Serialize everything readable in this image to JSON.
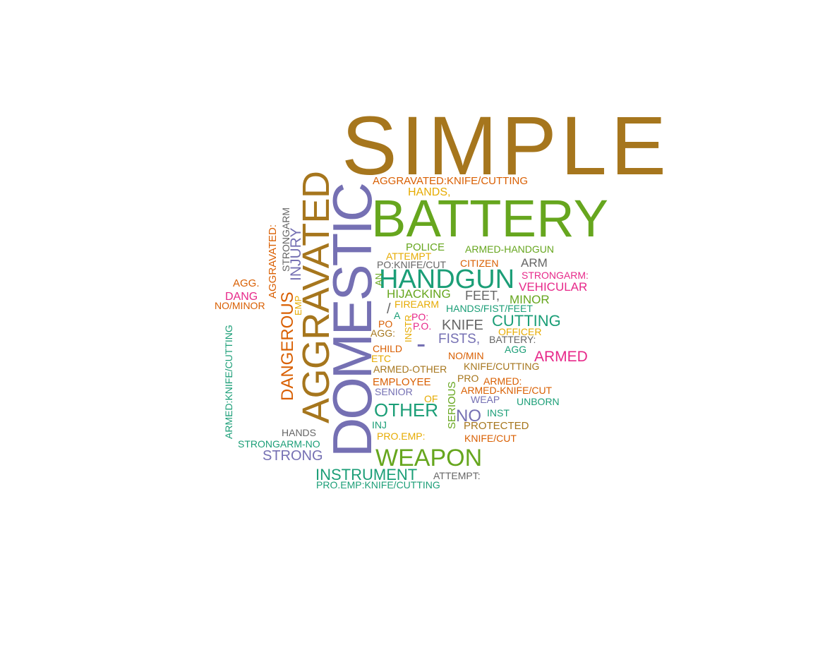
{
  "palette": {
    "brown": "#a6761d",
    "green": "#66a61e",
    "purple": "#7570b3",
    "teal": "#1b9e77",
    "orange": "#d95f02",
    "pink": "#e7298a",
    "gold": "#e6ab02",
    "gray": "#666666"
  },
  "words": [
    {
      "text": "SIMPLE",
      "color": "brown",
      "weight": 1.0
    },
    {
      "text": "BATTERY",
      "color": "green",
      "weight": 0.72
    },
    {
      "text": "DOMESTIC",
      "color": "purple",
      "weight": 0.8
    },
    {
      "text": "AGGRAVATED",
      "color": "brown",
      "weight": 0.62
    },
    {
      "text": "HANDGUN",
      "color": "teal",
      "weight": 0.4
    },
    {
      "text": "WEAPON",
      "color": "green",
      "weight": 0.35
    },
    {
      "text": "DANGEROUS",
      "color": "orange",
      "weight": 0.26
    },
    {
      "text": "OTHER",
      "color": "teal",
      "weight": 0.28
    },
    {
      "text": "INSTRUMENT",
      "color": "teal",
      "weight": 0.24
    },
    {
      "text": "CUTTING",
      "color": "teal",
      "weight": 0.22
    },
    {
      "text": "INJURY",
      "color": "purple",
      "weight": 0.2
    },
    {
      "text": "STRONG",
      "color": "purple",
      "weight": 0.2
    },
    {
      "text": "NO",
      "color": "purple",
      "weight": 0.22
    },
    {
      "text": "ARMED",
      "color": "pink",
      "weight": 0.21
    },
    {
      "text": "KNIFE",
      "color": "gray",
      "weight": 0.2
    },
    {
      "text": "FISTS,",
      "color": "purple",
      "weight": 0.19
    },
    {
      "text": "VEHICULAR",
      "color": "pink",
      "weight": 0.17
    },
    {
      "text": "ARM",
      "color": "gray",
      "weight": 0.17
    },
    {
      "text": "FEET,",
      "color": "gray",
      "weight": 0.17
    },
    {
      "text": "HIJACKING",
      "color": "green",
      "weight": 0.16
    },
    {
      "text": "MINOR",
      "color": "green",
      "weight": 0.16
    },
    {
      "text": "-",
      "color": "purple",
      "weight": 0.3
    },
    {
      "text": "/",
      "color": "gray",
      "weight": 0.2
    },
    {
      "text": "AGGRAVATED:",
      "color": "orange",
      "weight": 0.15
    },
    {
      "text": "STRONGARM",
      "color": "gray",
      "weight": 0.15
    },
    {
      "text": "HANDS,",
      "color": "gold",
      "weight": 0.15
    },
    {
      "text": "SERIOUS",
      "color": "green",
      "weight": 0.14
    },
    {
      "text": "AGGRAVATED:KNIFE/CUTTING",
      "color": "orange",
      "weight": 0.14
    },
    {
      "text": "ARMED-HANDGUN",
      "color": "green",
      "weight": 0.14
    },
    {
      "text": "POLICE",
      "color": "green",
      "weight": 0.14
    },
    {
      "text": "ATTEMPT",
      "color": "gold",
      "weight": 0.14
    },
    {
      "text": "CITIZEN",
      "color": "orange",
      "weight": 0.14
    },
    {
      "text": "PO:KNIFE/CUT",
      "color": "gray",
      "weight": 0.14
    },
    {
      "text": "STRONGARM:",
      "color": "pink",
      "weight": 0.14
    },
    {
      "text": "AN",
      "color": "green",
      "weight": 0.13
    },
    {
      "text": "AGG.",
      "color": "orange",
      "weight": 0.14
    },
    {
      "text": "DANG",
      "color": "pink",
      "weight": 0.15
    },
    {
      "text": "NO/MINOR",
      "color": "orange",
      "weight": 0.14
    },
    {
      "text": "EMP",
      "color": "gold",
      "weight": 0.13
    },
    {
      "text": "FIREARM",
      "color": "gold",
      "weight": 0.14
    },
    {
      "text": "HANDS/FIST/FEET",
      "color": "teal",
      "weight": 0.14
    },
    {
      "text": "A",
      "color": "teal",
      "weight": 0.13
    },
    {
      "text": "PO:",
      "color": "pink",
      "weight": 0.13
    },
    {
      "text": "PO",
      "color": "orange",
      "weight": 0.13
    },
    {
      "text": "P.O.",
      "color": "pink",
      "weight": 0.13
    },
    {
      "text": "INSTR",
      "color": "gold",
      "weight": 0.13
    },
    {
      "text": "OFFICER",
      "color": "gold",
      "weight": 0.14
    },
    {
      "text": "AGG:",
      "color": "brown",
      "weight": 0.13
    },
    {
      "text": "BATTERY:",
      "color": "gray",
      "weight": 0.14
    },
    {
      "text": "CHILD",
      "color": "orange",
      "weight": 0.14
    },
    {
      "text": "AGG",
      "color": "teal",
      "weight": 0.13
    },
    {
      "text": "ETC",
      "color": "gold",
      "weight": 0.13
    },
    {
      "text": "NO/MIN",
      "color": "orange",
      "weight": 0.13
    },
    {
      "text": "ARMED-OTHER",
      "color": "brown",
      "weight": 0.14
    },
    {
      "text": "KNIFE/CUTTING",
      "color": "brown",
      "weight": 0.14
    },
    {
      "text": "EMPLOYEE",
      "color": "orange",
      "weight": 0.15
    },
    {
      "text": "PRO",
      "color": "brown",
      "weight": 0.13
    },
    {
      "text": "ARMED:",
      "color": "orange",
      "weight": 0.13
    },
    {
      "text": "ARMED-KNIFE/CUT",
      "color": "orange",
      "weight": 0.14
    },
    {
      "text": "SENIOR",
      "color": "purple",
      "weight": 0.14
    },
    {
      "text": "WEAP",
      "color": "purple",
      "weight": 0.13
    },
    {
      "text": "UNBORN",
      "color": "teal",
      "weight": 0.13
    },
    {
      "text": "OF",
      "color": "gold",
      "weight": 0.13
    },
    {
      "text": "INST",
      "color": "teal",
      "weight": 0.13
    },
    {
      "text": "INJ",
      "color": "teal",
      "weight": 0.13
    },
    {
      "text": "PROTECTED",
      "color": "brown",
      "weight": 0.14
    },
    {
      "text": "ARMED:KNIFE/CUTTING",
      "color": "teal",
      "weight": 0.14
    },
    {
      "text": "HANDS",
      "color": "gray",
      "weight": 0.13
    },
    {
      "text": "PRO.EMP:",
      "color": "gold",
      "weight": 0.13
    },
    {
      "text": "KNIFE/CUT",
      "color": "orange",
      "weight": 0.13
    },
    {
      "text": "STRONGARM-NO",
      "color": "teal",
      "weight": 0.14
    },
    {
      "text": "ATTEMPT:",
      "color": "gray",
      "weight": 0.13
    },
    {
      "text": "PRO.EMP:KNIFE/CUTTING",
      "color": "teal",
      "weight": 0.14
    }
  ]
}
